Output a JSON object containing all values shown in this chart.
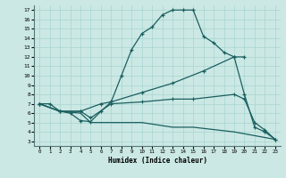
{
  "xlabel": "Humidex (Indice chaleur)",
  "bg_color": "#cbe8e4",
  "grid_color": "#a8d4d0",
  "line_color": "#1a5f5f",
  "xlim": [
    -0.5,
    23.5
  ],
  "ylim": [
    2.5,
    17.5
  ],
  "yticks": [
    3,
    4,
    5,
    6,
    7,
    8,
    9,
    10,
    11,
    12,
    13,
    14,
    15,
    16,
    17
  ],
  "xticks": [
    0,
    1,
    2,
    3,
    4,
    5,
    6,
    7,
    8,
    9,
    10,
    11,
    12,
    13,
    14,
    15,
    16,
    17,
    18,
    19,
    20,
    21,
    22,
    23
  ],
  "line1_x": [
    0,
    1,
    2,
    3,
    4,
    5,
    6,
    7,
    8,
    9,
    10,
    11,
    12,
    13,
    14,
    15,
    16,
    17,
    18,
    19,
    20
  ],
  "line1_y": [
    7.0,
    7.0,
    6.2,
    6.0,
    5.2,
    5.1,
    6.2,
    7.2,
    10.0,
    12.8,
    14.5,
    15.2,
    16.5,
    17.0,
    17.0,
    17.0,
    14.2,
    13.5,
    12.5,
    12.0,
    12.0
  ],
  "line2_x": [
    0,
    2,
    4,
    6,
    7,
    10,
    13,
    16,
    19,
    20,
    21,
    22,
    23
  ],
  "line2_y": [
    7.0,
    6.2,
    6.2,
    7.0,
    7.2,
    8.2,
    9.2,
    10.5,
    12.0,
    8.0,
    4.5,
    4.0,
    3.2
  ],
  "line3_x": [
    0,
    2,
    4,
    5,
    7,
    10,
    13,
    15,
    19,
    20,
    21,
    22,
    23
  ],
  "line3_y": [
    7.0,
    6.2,
    6.2,
    5.5,
    7.0,
    7.2,
    7.5,
    7.5,
    8.0,
    7.5,
    5.0,
    4.2,
    3.2
  ],
  "line4_x": [
    0,
    2,
    4,
    5,
    10,
    13,
    15,
    19,
    20,
    22,
    23
  ],
  "line4_y": [
    7.0,
    6.2,
    6.0,
    5.0,
    5.0,
    4.5,
    4.5,
    4.0,
    3.8,
    3.4,
    3.2
  ]
}
